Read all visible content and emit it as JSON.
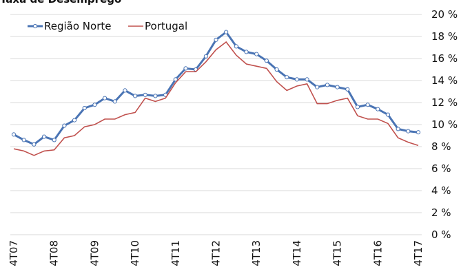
{
  "chart_data": {
    "type": "line",
    "title": "Taxa de Desemprego",
    "categories": [
      "4T07",
      null,
      null,
      null,
      "4T08",
      null,
      null,
      null,
      "4T09",
      null,
      null,
      null,
      "4T10",
      null,
      null,
      null,
      "4T11",
      null,
      null,
      null,
      "4T12",
      null,
      null,
      null,
      "4T13",
      null,
      null,
      null,
      "4T14",
      null,
      null,
      null,
      "4T15",
      null,
      null,
      null,
      "4T16",
      null,
      null,
      null,
      "4T17"
    ],
    "series": [
      {
        "name": "Região Norte",
        "color": "#4a74b4",
        "markers": true,
        "values": [
          9.1,
          8.6,
          8.2,
          8.9,
          8.6,
          9.9,
          10.4,
          11.5,
          11.8,
          12.4,
          12.1,
          13.1,
          12.6,
          12.7,
          12.6,
          12.7,
          14.1,
          15.1,
          15.0,
          16.2,
          17.7,
          18.4,
          17.1,
          16.6,
          16.4,
          15.8,
          15.0,
          14.3,
          14.1,
          14.1,
          13.4,
          13.6,
          13.4,
          13.2,
          11.6,
          11.8,
          11.4,
          10.9,
          9.6,
          9.4,
          9.3
        ]
      },
      {
        "name": "Portugal",
        "color": "#c0504d",
        "markers": false,
        "values": [
          7.8,
          7.6,
          7.2,
          7.6,
          7.7,
          8.8,
          9.0,
          9.8,
          10.0,
          10.5,
          10.5,
          10.9,
          11.1,
          12.4,
          12.1,
          12.4,
          13.8,
          14.8,
          14.8,
          15.7,
          16.8,
          17.5,
          16.3,
          15.5,
          15.3,
          15.1,
          13.9,
          13.1,
          13.5,
          13.7,
          11.9,
          11.9,
          12.2,
          12.4,
          10.8,
          10.5,
          10.5,
          10.1,
          8.8,
          8.4,
          8.1
        ]
      }
    ],
    "ylim": [
      0,
      20
    ],
    "yticks": [
      {
        "value": 0,
        "label": "0 %"
      },
      {
        "value": 2,
        "label": "2 %"
      },
      {
        "value": 4,
        "label": "4 %"
      },
      {
        "value": 6,
        "label": "6 %"
      },
      {
        "value": 8,
        "label": "8 %"
      },
      {
        "value": 10,
        "label": "10 %"
      },
      {
        "value": 12,
        "label": "12 %"
      },
      {
        "value": 14,
        "label": "14 %"
      },
      {
        "value": 16,
        "label": "16 %"
      },
      {
        "value": 18,
        "label": "18 %"
      },
      {
        "value": 20,
        "label": "20 %"
      }
    ],
    "grid": true,
    "legend": "top-left"
  }
}
